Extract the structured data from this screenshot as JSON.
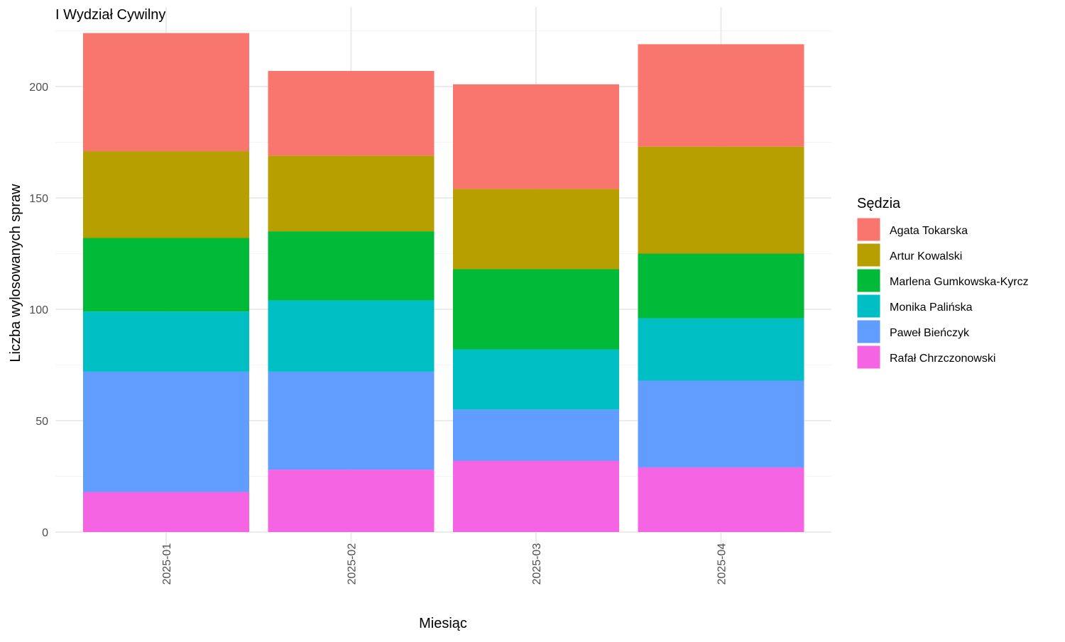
{
  "chart_data": {
    "type": "bar",
    "stacked": true,
    "title": "I Wydział Cywilny",
    "xlabel": "Miesiąc",
    "ylabel": "Liczba wylosowanych spraw",
    "categories": [
      "2025-01",
      "2025-02",
      "2025-03",
      "2025-04"
    ],
    "ylim": [
      0,
      230
    ],
    "yticks": [
      0,
      50,
      100,
      150,
      200
    ],
    "grid": true,
    "legend": {
      "title": "Sędzia",
      "position": "right"
    },
    "series": [
      {
        "name": "Rafał Chrzczonowski",
        "color": "#F564E3",
        "values": [
          18,
          28,
          32,
          29
        ]
      },
      {
        "name": "Paweł Bieńczyk",
        "color": "#619CFF",
        "values": [
          54,
          44,
          23,
          39
        ]
      },
      {
        "name": "Monika Palińska",
        "color": "#00BFC4",
        "values": [
          27,
          32,
          27,
          28
        ]
      },
      {
        "name": "Marlena Gumkowska-Kyrcz",
        "color": "#00BA38",
        "values": [
          33,
          31,
          36,
          29
        ]
      },
      {
        "name": "Artur Kowalski",
        "color": "#B79F00",
        "values": [
          39,
          34,
          36,
          48
        ]
      },
      {
        "name": "Agata Tokarska",
        "color": "#F8766D",
        "values": [
          53,
          38,
          47,
          46
        ]
      }
    ],
    "legend_order": [
      "Agata Tokarska",
      "Artur Kowalski",
      "Marlena Gumkowska-Kyrcz",
      "Monika Palińska",
      "Paweł Bieńczyk",
      "Rafał Chrzczonowski"
    ]
  }
}
